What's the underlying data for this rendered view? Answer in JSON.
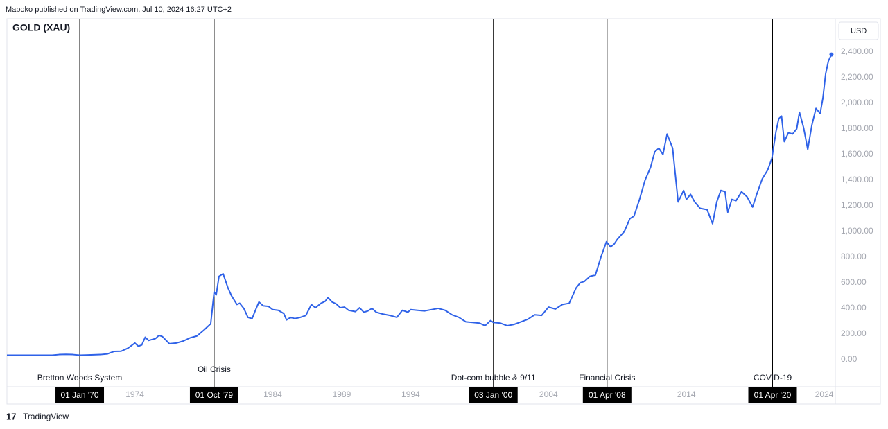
{
  "header": "Maboko published on TradingView.com, Jul 10, 2024 16:27 UTC+2",
  "footer": "TradingView",
  "chart_data": {
    "type": "line",
    "title": "GOLD (XAU)",
    "currency": "USD",
    "color": "#2f62e8",
    "xlim": [
      1964.72,
      2024.8
    ],
    "xticks": [
      1974,
      1984,
      1989,
      1994,
      2004,
      2014,
      2024
    ],
    "ylim": [
      -211,
      2659
    ],
    "yticks": [
      {
        "value": 0,
        "label": "0.00"
      },
      {
        "value": 200,
        "label": "200.00"
      },
      {
        "value": 400,
        "label": "400.00"
      },
      {
        "value": 600,
        "label": "600.00"
      },
      {
        "value": 800,
        "label": "800.00"
      },
      {
        "value": 1000,
        "label": "1,000.00"
      },
      {
        "value": 1200,
        "label": "1,200.00"
      },
      {
        "value": 1400,
        "label": "1,400.00"
      },
      {
        "value": 1600,
        "label": "1,600.00"
      },
      {
        "value": 1800,
        "label": "1,800.00"
      },
      {
        "value": 2000,
        "label": "2,000.00"
      },
      {
        "value": 2200,
        "label": "2,200.00"
      },
      {
        "value": 2400,
        "label": "2,400.00"
      }
    ],
    "events": [
      {
        "x": 1970.0,
        "label": "01 Jan '70",
        "text": "Bretton Woods System"
      },
      {
        "x": 1979.75,
        "label": "01 Oct '79",
        "text": "Oil Crisis"
      },
      {
        "x": 2000.0,
        "label": "03 Jan '00",
        "text": "Dot-com bubble & 9/11"
      },
      {
        "x": 2008.25,
        "label": "01 Apr '08",
        "text": "Financial Crisis"
      },
      {
        "x": 2020.25,
        "label": "01 Apr '20",
        "text": "COVID-19"
      }
    ],
    "x": [
      1964.72,
      1968,
      1968.5,
      1969,
      1969.5,
      1970,
      1971,
      1971.5,
      1972,
      1972.5,
      1973,
      1973.5,
      1974,
      1974.25,
      1974.5,
      1974.75,
      1975,
      1975.5,
      1975.75,
      1976,
      1976.5,
      1977,
      1977.5,
      1978,
      1978.5,
      1979,
      1979.5,
      1979.75,
      1979.9,
      1980.1,
      1980.4,
      1980.75,
      1981,
      1981.4,
      1981.6,
      1981.9,
      1982.2,
      1982.5,
      1982.8,
      1983,
      1983.3,
      1983.7,
      1984,
      1984.4,
      1984.8,
      1985,
      1985.3,
      1985.6,
      1986,
      1986.4,
      1986.8,
      1987.1,
      1987.5,
      1987.8,
      1988,
      1988.3,
      1988.6,
      1988.9,
      1989.2,
      1989.5,
      1990,
      1990.3,
      1990.6,
      1990.9,
      1991.2,
      1991.5,
      1992,
      1992.5,
      1993,
      1993.4,
      1993.8,
      1994,
      1994.5,
      1995,
      1995.5,
      1996,
      1996.5,
      1997,
      1997.5,
      1998,
      1998.5,
      1999,
      1999.4,
      1999.8,
      2000,
      2000.5,
      2001,
      2001.5,
      2002,
      2002.5,
      2003,
      2003.5,
      2004,
      2004.5,
      2005,
      2005.5,
      2006,
      2006.3,
      2006.6,
      2007,
      2007.4,
      2007.8,
      2008.2,
      2008.5,
      2008.75,
      2009,
      2009.5,
      2009.9,
      2010.2,
      2010.6,
      2011,
      2011.4,
      2011.7,
      2012,
      2012.3,
      2012.6,
      2013,
      2013.4,
      2013.8,
      2014,
      2014.3,
      2014.6,
      2015,
      2015.5,
      2015.9,
      2016.2,
      2016.5,
      2016.8,
      2017,
      2017.3,
      2017.6,
      2018,
      2018.4,
      2018.8,
      2019.1,
      2019.5,
      2019.9,
      2020.2,
      2020.5,
      2020.7,
      2020.9,
      2021.1,
      2021.4,
      2021.7,
      2022,
      2022.2,
      2022.5,
      2022.8,
      2023.1,
      2023.4,
      2023.7,
      2023.9,
      2024.1,
      2024.3,
      2024.52
    ],
    "values": [
      35,
      35,
      40,
      42,
      40,
      35,
      38,
      40,
      45,
      65,
      66,
      90,
      130,
      105,
      115,
      175,
      150,
      165,
      190,
      180,
      125,
      130,
      145,
      170,
      185,
      230,
      280,
      530,
      505,
      650,
      670,
      560,
      500,
      430,
      440,
      400,
      330,
      320,
      400,
      450,
      420,
      415,
      390,
      385,
      360,
      310,
      330,
      320,
      330,
      345,
      430,
      405,
      440,
      455,
      485,
      450,
      435,
      405,
      410,
      385,
      375,
      405,
      370,
      380,
      400,
      370,
      355,
      345,
      330,
      385,
      370,
      390,
      385,
      380,
      390,
      400,
      385,
      350,
      330,
      295,
      290,
      285,
      265,
      305,
      290,
      285,
      265,
      275,
      295,
      315,
      350,
      345,
      410,
      395,
      430,
      440,
      560,
      600,
      610,
      650,
      660,
      800,
      920,
      880,
      900,
      940,
      1000,
      1100,
      1120,
      1250,
      1400,
      1500,
      1620,
      1650,
      1600,
      1760,
      1650,
      1230,
      1320,
      1250,
      1290,
      1230,
      1180,
      1170,
      1060,
      1230,
      1320,
      1310,
      1150,
      1250,
      1240,
      1310,
      1270,
      1190,
      1290,
      1410,
      1480,
      1570,
      1780,
      1880,
      1900,
      1700,
      1770,
      1760,
      1800,
      1930,
      1810,
      1640,
      1830,
      1960,
      1920,
      2040,
      2230,
      2330,
      2380
    ]
  }
}
